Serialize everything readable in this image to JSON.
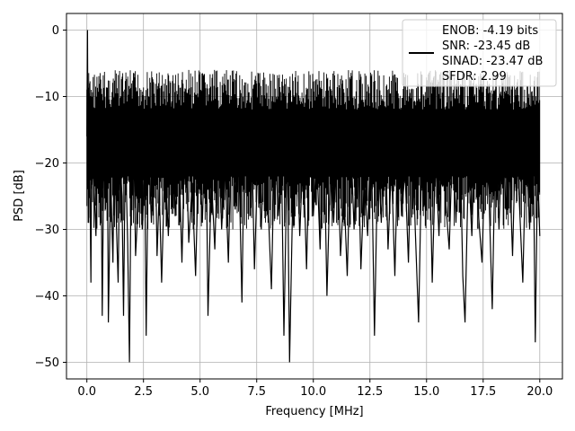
{
  "chart_data": {
    "type": "line",
    "xlabel": "Frequency [MHz]",
    "ylabel": "PSD [dB]",
    "xlim": [
      -0.9,
      21.0
    ],
    "ylim": [
      -52.5,
      2.5
    ],
    "grid": true,
    "legend_position": "top-right",
    "x_ticks": [
      0.0,
      2.5,
      5.0,
      7.5,
      10.0,
      12.5,
      15.0,
      17.5,
      20.0
    ],
    "x_tick_labels": [
      "0.0",
      "2.5",
      "5.0",
      "7.5",
      "10.0",
      "12.5",
      "15.0",
      "17.5",
      "20.0"
    ],
    "y_ticks": [
      0,
      -10,
      -20,
      -30,
      -40,
      -50
    ],
    "y_tick_labels": [
      "0",
      "−10",
      "−20",
      "−30",
      "−40",
      "−50"
    ],
    "legend": {
      "lines": [
        "ENOB: -4.19 bits",
        "SNR: -23.45 dB",
        "SINAD: -23.47 dB",
        "SFDR: 2.99"
      ]
    },
    "series": [
      {
        "color": "#000000",
        "points": [
          [
            0.0,
            -16
          ],
          [
            0.03,
            0
          ],
          [
            0.06,
            -29
          ],
          [
            0.1,
            -8
          ],
          [
            0.14,
            -24
          ],
          [
            0.18,
            -38
          ],
          [
            0.22,
            -12
          ],
          [
            0.3,
            -22
          ],
          [
            0.4,
            -31
          ],
          [
            0.48,
            -11
          ],
          [
            0.55,
            -26
          ],
          [
            0.62,
            -15
          ],
          [
            0.68,
            -43
          ],
          [
            0.75,
            -18
          ],
          [
            0.82,
            -27
          ],
          [
            0.9,
            -13
          ],
          [
            0.95,
            -44
          ],
          [
            1.05,
            -22
          ],
          [
            1.15,
            -35
          ],
          [
            1.22,
            -14
          ],
          [
            1.3,
            -29
          ],
          [
            1.38,
            -38
          ],
          [
            1.45,
            -19
          ],
          [
            1.55,
            -25
          ],
          [
            1.62,
            -43
          ],
          [
            1.7,
            -17
          ],
          [
            1.8,
            -32
          ],
          [
            1.88,
            -50
          ],
          [
            1.95,
            -23
          ],
          [
            2.05,
            -12
          ],
          [
            2.15,
            -34
          ],
          [
            2.25,
            -27
          ],
          [
            2.35,
            -14
          ],
          [
            2.45,
            -30
          ],
          [
            2.55,
            -20
          ],
          [
            2.62,
            -46
          ],
          [
            2.72,
            -16
          ],
          [
            2.85,
            -29
          ],
          [
            3.0,
            -12
          ],
          [
            3.1,
            -34
          ],
          [
            3.2,
            -24
          ],
          [
            3.3,
            -38
          ],
          [
            3.45,
            -19
          ],
          [
            3.6,
            -31
          ],
          [
            3.75,
            -11
          ],
          [
            3.9,
            -28
          ],
          [
            4.05,
            -17
          ],
          [
            4.2,
            -35
          ],
          [
            4.35,
            -13
          ],
          [
            4.5,
            -32
          ],
          [
            4.65,
            -23
          ],
          [
            4.8,
            -37
          ],
          [
            4.95,
            -16
          ],
          [
            5.1,
            -29
          ],
          [
            5.25,
            -12
          ],
          [
            5.35,
            -43
          ],
          [
            5.5,
            -22
          ],
          [
            5.65,
            -33
          ],
          [
            5.8,
            -14
          ],
          [
            5.95,
            -30
          ],
          [
            6.1,
            -20
          ],
          [
            6.25,
            -35
          ],
          [
            6.4,
            -13
          ],
          [
            6.55,
            -27
          ],
          [
            6.7,
            -18
          ],
          [
            6.85,
            -41
          ],
          [
            6.95,
            -16
          ],
          [
            7.1,
            -25
          ],
          [
            7.25,
            -11
          ],
          [
            7.4,
            -36
          ],
          [
            7.55,
            -19
          ],
          [
            7.7,
            -30
          ],
          [
            7.85,
            -14
          ],
          [
            8.0,
            -26
          ],
          [
            8.15,
            -39
          ],
          [
            8.3,
            -15
          ],
          [
            8.45,
            -28
          ],
          [
            8.6,
            -21
          ],
          [
            8.7,
            -46
          ],
          [
            8.85,
            -17
          ],
          [
            8.95,
            -50
          ],
          [
            9.1,
            -23
          ],
          [
            9.25,
            -12
          ],
          [
            9.4,
            -31
          ],
          [
            9.55,
            -18
          ],
          [
            9.7,
            -36
          ],
          [
            9.85,
            -14
          ],
          [
            10.0,
            -28
          ],
          [
            10.15,
            -19
          ],
          [
            10.3,
            -33
          ],
          [
            10.45,
            -12
          ],
          [
            10.6,
            -40
          ],
          [
            10.75,
            -21
          ],
          [
            10.9,
            -29
          ],
          [
            11.05,
            -15
          ],
          [
            11.2,
            -34
          ],
          [
            11.35,
            -24
          ],
          [
            11.5,
            -37
          ],
          [
            11.65,
            -16
          ],
          [
            11.8,
            -30
          ],
          [
            11.95,
            -13
          ],
          [
            12.1,
            -36
          ],
          [
            12.25,
            -22
          ],
          [
            12.4,
            -31
          ],
          [
            12.55,
            -14
          ],
          [
            12.7,
            -46
          ],
          [
            12.85,
            -18
          ],
          [
            13.0,
            -29
          ],
          [
            13.15,
            -12
          ],
          [
            13.3,
            -33
          ],
          [
            13.45,
            -20
          ],
          [
            13.6,
            -37
          ],
          [
            13.75,
            -15
          ],
          [
            13.9,
            -28
          ],
          [
            14.05,
            -21
          ],
          [
            14.2,
            -35
          ],
          [
            14.35,
            -13
          ],
          [
            14.5,
            -30
          ],
          [
            14.65,
            -44
          ],
          [
            14.8,
            -17
          ],
          [
            14.95,
            -27
          ],
          [
            15.1,
            -12
          ],
          [
            15.25,
            -38
          ],
          [
            15.4,
            -19
          ],
          [
            15.55,
            -31
          ],
          [
            15.7,
            -14
          ],
          [
            15.85,
            -26
          ],
          [
            16.0,
            -33
          ],
          [
            16.15,
            -16
          ],
          [
            16.3,
            -29
          ],
          [
            16.45,
            -11
          ],
          [
            16.6,
            -37
          ],
          [
            16.7,
            -44
          ],
          [
            16.85,
            -20
          ],
          [
            17.0,
            -31
          ],
          [
            17.15,
            -13
          ],
          [
            17.3,
            -28
          ],
          [
            17.45,
            -35
          ],
          [
            17.6,
            -17
          ],
          [
            17.75,
            -24
          ],
          [
            17.9,
            -42
          ],
          [
            18.05,
            -15
          ],
          [
            18.2,
            -30
          ],
          [
            18.35,
            -12
          ],
          [
            18.5,
            -27
          ],
          [
            18.65,
            -19
          ],
          [
            18.8,
            -34
          ],
          [
            18.95,
            -14
          ],
          [
            19.1,
            -26
          ],
          [
            19.25,
            -38
          ],
          [
            19.4,
            -16
          ],
          [
            19.55,
            -30
          ],
          [
            19.7,
            -13
          ],
          [
            19.8,
            -47
          ],
          [
            19.9,
            -21
          ],
          [
            20.0,
            -31
          ]
        ]
      }
    ]
  }
}
